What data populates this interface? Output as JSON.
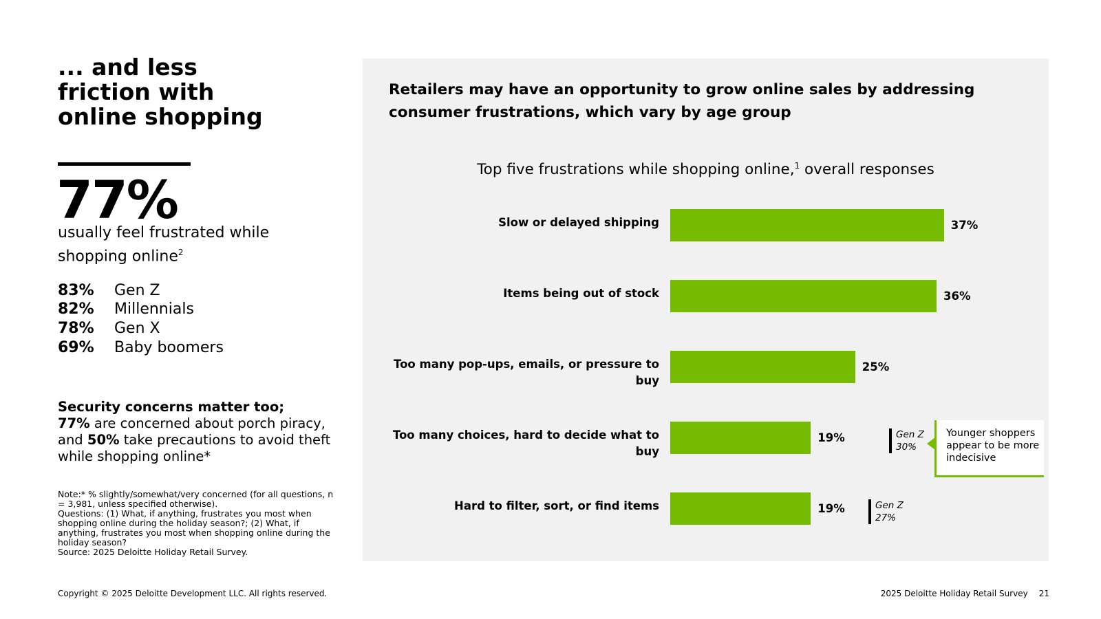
{
  "headline": "... and less friction with online shopping",
  "key_stat": {
    "value": "77%",
    "description": "usually feel frustrated while shopping online",
    "footnote_marker": "2"
  },
  "generations": [
    {
      "pct": "83%",
      "name": "Gen Z"
    },
    {
      "pct": "82%",
      "name": "Millennials"
    },
    {
      "pct": "78%",
      "name": "Gen X"
    },
    {
      "pct": "69%",
      "name": "Baby boomers"
    }
  ],
  "security": {
    "heading": "Security concerns matter too;",
    "porch_pct": "77%",
    "porch_text": " are concerned about porch piracy,",
    "and_text": "and ",
    "precaution_pct": "50%",
    "precaution_text": " take precautions to avoid theft while shopping online*"
  },
  "notes": {
    "note": "Note:* % slightly/somewhat/very concerned (for all questions, n = 3,981, unless specified otherwise).",
    "questions": "Questions: (1) What, if anything, frustrates you most when shopping online during the holiday season?; (2) What, if anything, frustrates you most when shopping online during the holiday season?",
    "source": "Source: 2025 Deloitte Holiday Retail Survey."
  },
  "panel_title": "Retailers may have an opportunity to grow online sales by addressing consumer frustrations, which vary by age group",
  "chart_data": {
    "type": "bar",
    "orientation": "horizontal",
    "title": "Top five frustrations while shopping online,",
    "title_footnote": "1",
    "title_suffix": " overall responses",
    "categories": [
      "Slow or delayed shipping",
      "Items being out of stock",
      "Too many pop-ups, emails, or pressure to buy",
      "Too many choices, hard to decide what to buy",
      "Hard to filter, sort, or find items"
    ],
    "values": [
      37,
      36,
      25,
      19,
      19
    ],
    "value_labels": [
      "37%",
      "36%",
      "25%",
      "19%",
      "19%"
    ],
    "xlim": [
      0,
      40
    ],
    "unit": "%",
    "color": "#75bc00",
    "annotations": [
      {
        "category_index": 3,
        "label": "Gen Z",
        "value": "30%"
      },
      {
        "category_index": 4,
        "label": "Gen Z",
        "value": "27%"
      }
    ],
    "callout": "Younger shoppers appear to be more indecisive"
  },
  "footer": {
    "copyright": "Copyright © 2025 Deloitte Development LLC. All rights reserved.",
    "report": "2025 Deloitte Holiday Retail Survey",
    "page": "21"
  },
  "colors": {
    "accent": "#75bc00",
    "panel": "#f1f1f1"
  }
}
